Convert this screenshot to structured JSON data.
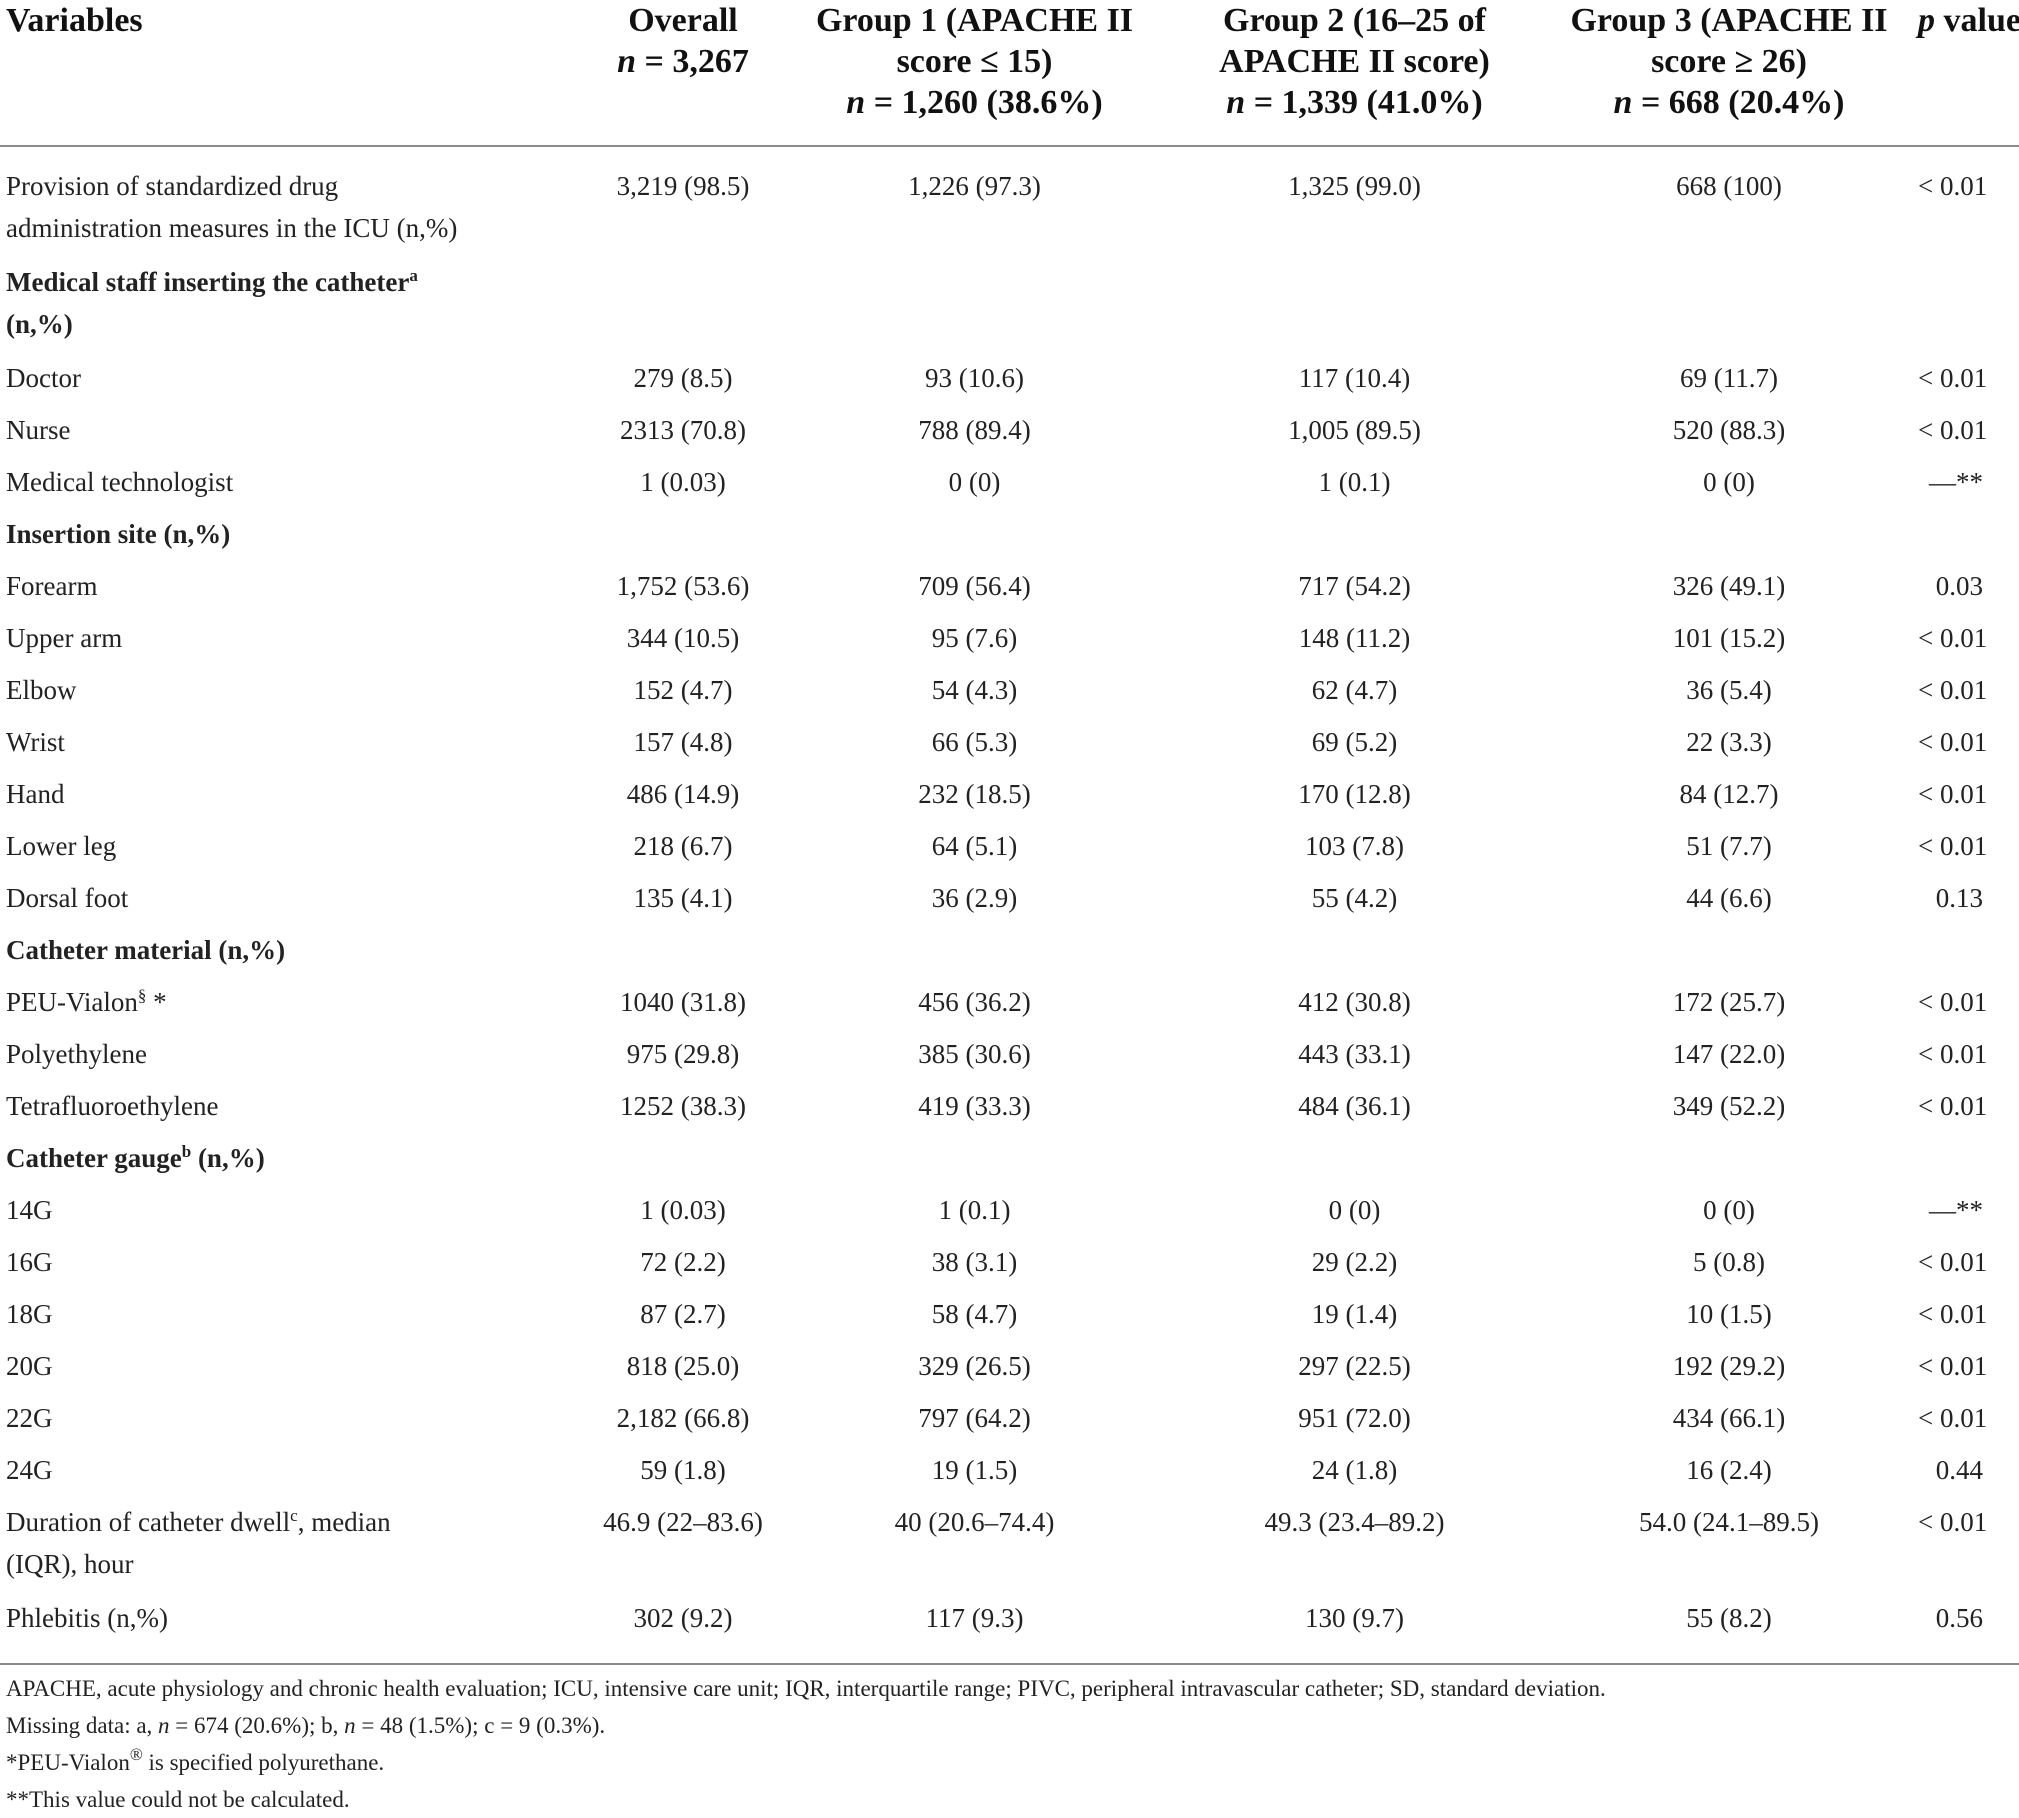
{
  "header": {
    "variables": "Variables",
    "overall": {
      "title": "Overall",
      "n_label": "n",
      "n_value": " = 3,267"
    },
    "group1": {
      "title_1": "Group 1 (APACHE II",
      "title_2": "score ≤ 15)",
      "n_label": "n",
      "n_value": " = 1,260 (38.6%)"
    },
    "group2": {
      "title_1": "Group 2 (16–25 of",
      "title_2": "APACHE II score)",
      "n_label": "n",
      "n_value": " = 1,339 (41.0%)"
    },
    "group3": {
      "title_1": "Group 3 (APACHE II",
      "title_2": "score ≥ 26)",
      "n_label": "n",
      "n_value": " = 668 (20.4%)"
    },
    "pvalue": {
      "p": "p",
      "rest": " value"
    }
  },
  "rows": {
    "provision": {
      "var_1": "Provision of standardized drug",
      "var_2": "administration measures in the ICU (n,%)",
      "overall": "3,219 (98.5)",
      "g1": "1,226 (97.3)",
      "g2": "1,325 (99.0)",
      "g3": "668 (100)",
      "p": "< 0.01"
    },
    "staff_section": {
      "label": "Medical staff inserting the catheter",
      "sup": "a",
      "label_2": "(n,%)"
    },
    "doctor": {
      "var": "Doctor",
      "overall": "279 (8.5)",
      "g1": "93 (10.6)",
      "g2": "117 (10.4)",
      "g3": "69 (11.7)",
      "p": "< 0.01"
    },
    "nurse": {
      "var": "Nurse",
      "overall": "2313 (70.8)",
      "g1": "788 (89.4)",
      "g2": "1,005 (89.5)",
      "g3": "520 (88.3)",
      "p": "< 0.01"
    },
    "medtech": {
      "var": "Medical technologist",
      "overall": "1 (0.03)",
      "g1": "0 (0)",
      "g2": "1 (0.1)",
      "g3": "0 (0)",
      "p": "—**"
    },
    "site_section": {
      "label": "Insertion site (n,%)"
    },
    "forearm": {
      "var": "Forearm",
      "overall": "1,752 (53.6)",
      "g1": "709 (56.4)",
      "g2": "717 (54.2)",
      "g3": "326 (49.1)",
      "p": "0.03"
    },
    "upperarm": {
      "var": "Upper arm",
      "overall": "344 (10.5)",
      "g1": "95 (7.6)",
      "g2": "148 (11.2)",
      "g3": "101 (15.2)",
      "p": "< 0.01"
    },
    "elbow": {
      "var": "Elbow",
      "overall": "152 (4.7)",
      "g1": "54 (4.3)",
      "g2": "62 (4.7)",
      "g3": "36 (5.4)",
      "p": "< 0.01"
    },
    "wrist": {
      "var": "Wrist",
      "overall": "157 (4.8)",
      "g1": "66 (5.3)",
      "g2": "69 (5.2)",
      "g3": "22 (3.3)",
      "p": "< 0.01"
    },
    "hand": {
      "var": "Hand",
      "overall": "486 (14.9)",
      "g1": "232 (18.5)",
      "g2": "170 (12.8)",
      "g3": "84 (12.7)",
      "p": "< 0.01"
    },
    "lowerleg": {
      "var": "Lower leg",
      "overall": "218 (6.7)",
      "g1": "64 (5.1)",
      "g2": "103 (7.8)",
      "g3": "51 (7.7)",
      "p": "< 0.01"
    },
    "dorsalfoot": {
      "var": "Dorsal foot",
      "overall": "135 (4.1)",
      "g1": "36 (2.9)",
      "g2": "55 (4.2)",
      "g3": "44 (6.6)",
      "p": "0.13"
    },
    "material_section": {
      "label": "Catheter material (n,%)"
    },
    "peu": {
      "var": "PEU-Vialon",
      "sup": "§",
      "var_suffix": " *",
      "overall": "1040 (31.8)",
      "g1": "456 (36.2)",
      "g2": "412 (30.8)",
      "g3": "172 (25.7)",
      "p": "< 0.01"
    },
    "polyethylene": {
      "var": "Polyethylene",
      "overall": "975 (29.8)",
      "g1": "385 (30.6)",
      "g2": "443 (33.1)",
      "g3": "147 (22.0)",
      "p": "< 0.01"
    },
    "tetra": {
      "var": "Tetrafluoroethylene",
      "overall": "1252 (38.3)",
      "g1": "419 (33.3)",
      "g2": "484 (36.1)",
      "g3": "349 (52.2)",
      "p": "< 0.01"
    },
    "gauge_section": {
      "label": "Catheter gauge",
      "sup": "b",
      "label_suffix": " (n,%)"
    },
    "g14": {
      "var": "14G",
      "overall": "1 (0.03)",
      "g1": "1 (0.1)",
      "g2": "0 (0)",
      "g3": "0 (0)",
      "p": "—**"
    },
    "g16": {
      "var": "16G",
      "overall": "72 (2.2)",
      "g1": "38 (3.1)",
      "g2": "29 (2.2)",
      "g3": "5 (0.8)",
      "p": "< 0.01"
    },
    "g18": {
      "var": "18G",
      "overall": "87 (2.7)",
      "g1": "58 (4.7)",
      "g2": "19 (1.4)",
      "g3": "10 (1.5)",
      "p": "< 0.01"
    },
    "g20": {
      "var": "20G",
      "overall": "818 (25.0)",
      "g1": "329 (26.5)",
      "g2": "297 (22.5)",
      "g3": "192 (29.2)",
      "p": "< 0.01"
    },
    "g22": {
      "var": "22G",
      "overall": "2,182 (66.8)",
      "g1": "797 (64.2)",
      "g2": "951 (72.0)",
      "g3": "434 (66.1)",
      "p": "< 0.01"
    },
    "g24": {
      "var": "24G",
      "overall": "59 (1.8)",
      "g1": "19 (1.5)",
      "g2": "24 (1.8)",
      "g3": "16 (2.4)",
      "p": "0.44"
    },
    "duration": {
      "var_1": "Duration of catheter dwell",
      "sup": "c",
      "var_1_suffix": ", median",
      "var_2": "(IQR), hour",
      "overall": "46.9 (22–83.6)",
      "g1": "40 (20.6–74.4)",
      "g2": "49.3 (23.4–89.2)",
      "g3": "54.0 (24.1–89.5)",
      "p": "< 0.01"
    },
    "phlebitis": {
      "var": "Phlebitis (n,%)",
      "overall": "302 (9.2)",
      "g1": "117 (9.3)",
      "g2": "130 (9.7)",
      "g3": "55 (8.2)",
      "p": "0.56"
    }
  },
  "notes": {
    "abbrev": "APACHE, acute physiology and chronic health evaluation; ICU, intensive care unit; IQR, interquartile range; PIVC, peripheral intravascular catheter; SD, standard deviation.",
    "missing_prefix": "Missing data: a, ",
    "missing_n1": "n",
    "missing_mid1": " = 674 (20.6%); b, ",
    "missing_n2": "n",
    "missing_tail": " = 48 (1.5%); c = 9 (0.3%).",
    "peu_note_1": "*PEU-Vialon",
    "peu_note_reg": "®",
    "peu_note_2": " is specified polyurethane.",
    "calc_note": "**This value could not be calculated."
  }
}
